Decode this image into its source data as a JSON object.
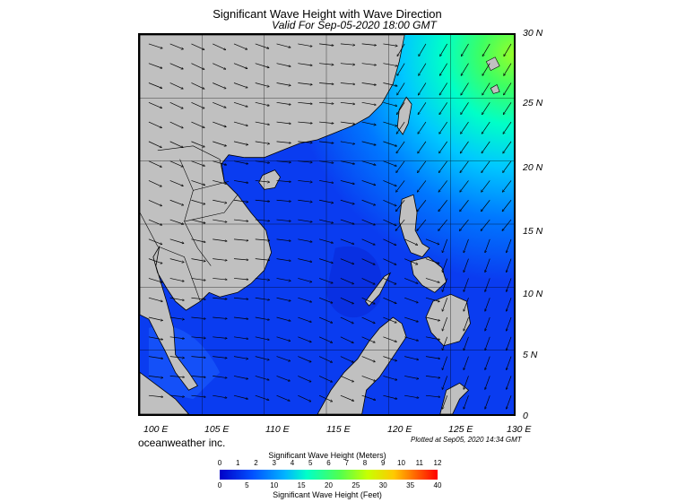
{
  "header": {
    "title": "Significant Wave Height with Wave Direction",
    "subtitle": "Valid For Sep-05-2020 18:00 GMT"
  },
  "axes": {
    "lat_labels": [
      "30 N",
      "25 N",
      "20 N",
      "15 N",
      "10 N",
      "5 N",
      "0"
    ],
    "lon_labels": [
      "100 E",
      "105 E",
      "110 E",
      "115 E",
      "120 E",
      "125 E",
      "130 E"
    ]
  },
  "footer": {
    "company": "oceanweather inc.",
    "plotted": "Plotted at Sep05, 2020 14:34 GMT"
  },
  "legend": {
    "meters_title": "Significant Wave Height (Meters)",
    "feet_title": "Significant Wave Height (Feet)",
    "meters_ticks": [
      "0",
      "1",
      "2",
      "3",
      "4",
      "5",
      "6",
      "7",
      "8",
      "9",
      "10",
      "11",
      "12"
    ],
    "feet_ticks": [
      "0",
      "5",
      "10",
      "15",
      "20",
      "25",
      "30",
      "35",
      "40"
    ]
  },
  "colors": {
    "land": "#c0c0c0",
    "low_wave": "#0a3cf0",
    "mid_wave": "#00c8ff",
    "high_wave": "#64ff32"
  }
}
